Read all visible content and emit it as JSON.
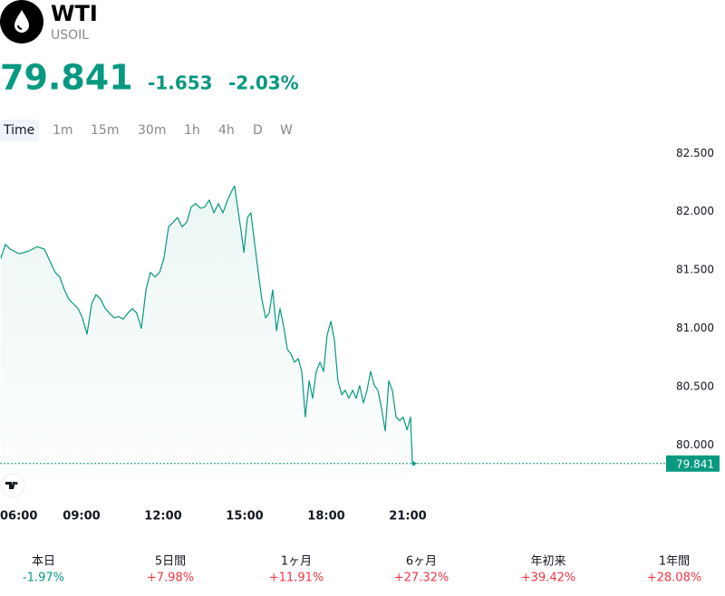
{
  "header": {
    "symbol": "WTI",
    "ticker": "USOIL",
    "price": "79.841",
    "change": "-1.653",
    "change_percent": "-2.03%"
  },
  "timeframes": [
    "Time",
    "1m",
    "15m",
    "30m",
    "1h",
    "4h",
    "D",
    "W"
  ],
  "chart_data": {
    "type": "line",
    "color": "#089981",
    "x": [
      6.03,
      6.2,
      6.37,
      6.7,
      7.03,
      7.37,
      7.63,
      7.87,
      8.03,
      8.2,
      8.37,
      8.53,
      8.7,
      8.87,
      9.03,
      9.2,
      9.37,
      9.53,
      9.7,
      9.87,
      10.03,
      10.2,
      10.37,
      10.53,
      10.7,
      10.87,
      11.03,
      11.2,
      11.37,
      11.53,
      11.7,
      11.87,
      12.03,
      12.2,
      12.37,
      12.53,
      12.7,
      12.87,
      13.03,
      13.2,
      13.37,
      13.53,
      13.7,
      13.87,
      14.03,
      14.2,
      14.37,
      14.53,
      14.63,
      14.77,
      14.87,
      14.97,
      15.1,
      15.23,
      15.37,
      15.5,
      15.63,
      15.77,
      15.9,
      16.03,
      16.17,
      16.3,
      16.43,
      16.57,
      16.7,
      16.83,
      16.97,
      17.1,
      17.23,
      17.37,
      17.5,
      17.63,
      17.77,
      17.9,
      18.03,
      18.17,
      18.3,
      18.43,
      18.57,
      18.7,
      18.83,
      18.97,
      19.1,
      19.23,
      19.37,
      19.5,
      19.63,
      19.77,
      19.9,
      20.03,
      20.17,
      20.3,
      20.43,
      20.57,
      20.7,
      20.83,
      20.97,
      21.1,
      21.17
    ],
    "series": [
      {
        "name": "USOIL",
        "color": "#089981",
        "values": [
          81.6,
          81.72,
          81.68,
          81.64,
          81.66,
          81.7,
          81.68,
          81.56,
          81.48,
          81.44,
          81.33,
          81.25,
          81.21,
          81.17,
          81.09,
          80.95,
          81.21,
          81.29,
          81.25,
          81.17,
          81.13,
          81.09,
          81.1,
          81.08,
          81.13,
          81.17,
          81.13,
          81.0,
          81.33,
          81.48,
          81.44,
          81.48,
          81.6,
          81.87,
          81.91,
          81.95,
          81.87,
          81.91,
          82.04,
          82.07,
          82.03,
          82.04,
          82.1,
          81.99,
          82.07,
          81.99,
          82.1,
          82.18,
          82.22,
          81.99,
          81.83,
          81.65,
          81.95,
          81.99,
          81.72,
          81.48,
          81.25,
          81.09,
          81.13,
          81.33,
          80.98,
          81.17,
          81.02,
          80.82,
          80.78,
          80.71,
          80.74,
          80.63,
          80.24,
          80.55,
          80.4,
          80.63,
          80.71,
          80.63,
          80.94,
          81.06,
          80.9,
          80.55,
          80.43,
          80.47,
          80.4,
          80.47,
          80.4,
          80.51,
          80.36,
          80.47,
          80.63,
          80.51,
          80.47,
          80.32,
          80.12,
          80.55,
          80.47,
          80.24,
          80.21,
          80.24,
          80.13,
          80.24,
          79.841
        ]
      }
    ],
    "xlim": [
      6,
      30.5
    ],
    "xticks": [
      {
        "value": 6,
        "label": "06:00"
      },
      {
        "value": 9,
        "label": "09:00"
      },
      {
        "value": 12,
        "label": "12:00"
      },
      {
        "value": 15,
        "label": "15:00"
      },
      {
        "value": 18,
        "label": "18:00"
      },
      {
        "value": 21,
        "label": "21:00"
      }
    ],
    "ylim": [
      79.75,
      82.65
    ],
    "yticks": [
      {
        "value": 80,
        "label": "80.000"
      },
      {
        "value": 80.5,
        "label": "80.500"
      },
      {
        "value": 81,
        "label": "81.000"
      },
      {
        "value": 81.5,
        "label": "81.500"
      },
      {
        "value": 82,
        "label": "82.000"
      },
      {
        "value": 82.5,
        "label": "82.500"
      }
    ],
    "grid": false
  },
  "performance": [
    {
      "label": "本日",
      "value": "-1.97%"
    },
    {
      "label": "5日間",
      "value": "+7.98%"
    },
    {
      "label": "1ヶ月",
      "value": "+11.91%"
    },
    {
      "label": "6ヶ月",
      "value": "+27.32%"
    },
    {
      "label": "年初来",
      "value": "+39.42%"
    },
    {
      "label": "1年間",
      "value": "+28.08%"
    }
  ]
}
